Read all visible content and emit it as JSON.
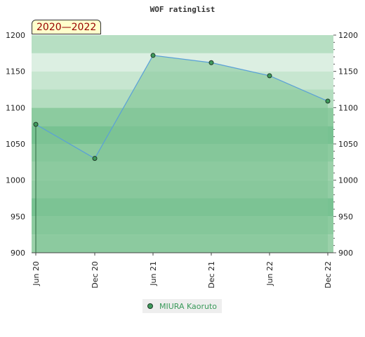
{
  "chart_data": {
    "type": "area",
    "title": "WOF ratinglist",
    "period_label": "2020—2022",
    "x": [
      "Jun 20",
      "Dec 20",
      "Jun 21",
      "Dec 21",
      "Jun 22",
      "Dec 22"
    ],
    "series": [
      {
        "name": "MIURA Kaoruto",
        "values": [
          1077,
          1030,
          1172,
          1162,
          1144,
          1109
        ]
      }
    ],
    "ylim": [
      900,
      1200
    ],
    "y_ticks": [
      900,
      950,
      1000,
      1050,
      1100,
      1150,
      1200
    ],
    "grid": true,
    "legend_position": "bottom",
    "colors": {
      "area_fill": "#7fc496",
      "line": "#5aa0d8",
      "marker": "#3f9a5c",
      "band_dark": "#7cc495",
      "band_light": "#f0f8f2"
    }
  }
}
